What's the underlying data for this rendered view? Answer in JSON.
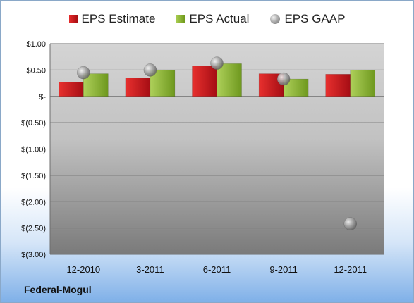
{
  "chart_data": {
    "type": "bar",
    "categories": [
      "12-2010",
      "3-2011",
      "6-2011",
      "9-2011",
      "12-2011"
    ],
    "series": [
      {
        "name": "EPS Estimate",
        "values": [
          0.27,
          0.35,
          0.58,
          0.43,
          0.42
        ],
        "color": "#c8141c"
      },
      {
        "name": "EPS Actual",
        "values": [
          0.43,
          0.5,
          0.62,
          0.33,
          0.5
        ],
        "color": "#8cb43a"
      },
      {
        "name": "EPS GAAP",
        "values": [
          0.45,
          0.5,
          0.63,
          0.33,
          -2.42
        ],
        "color": "#9a9a9a",
        "marker": "sphere"
      }
    ],
    "yticks": [
      1.0,
      0.5,
      0.0,
      -0.5,
      -1.0,
      -1.5,
      -2.0,
      -2.5,
      -3.0
    ],
    "ytick_labels": [
      "$1.00",
      "$0.50",
      "$-",
      "$(0.50)",
      "$(1.00)",
      "$(1.50)",
      "$(2.00)",
      "$(2.50)",
      "$(3.00)"
    ],
    "ylim": [
      -3.0,
      1.0
    ],
    "grid": true,
    "legend": "top"
  },
  "legend": {
    "estimate": "EPS Estimate",
    "actual": "EPS Actual",
    "gaap": "EPS GAAP"
  },
  "footer": {
    "company": "Federal-Mogul"
  }
}
